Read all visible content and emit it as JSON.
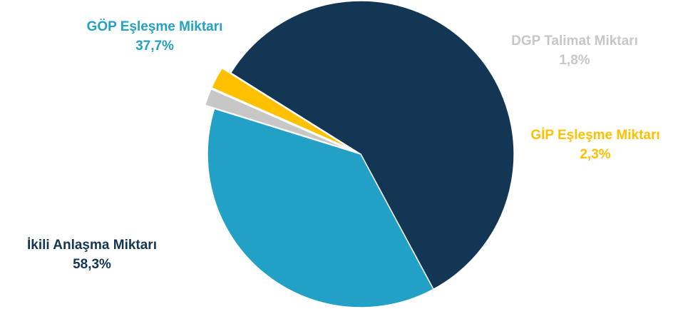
{
  "chart_data": {
    "type": "pie",
    "categories": [
      "İkili Anlaşma Miktarı",
      "GÖP Eşleşme Miktarı",
      "DGP Talimat Miktarı",
      "GİP Eşleşme Miktarı"
    ],
    "values": [
      58.3,
      37.7,
      1.8,
      2.3
    ],
    "value_labels": [
      "58,3%",
      "37,7%",
      "1,8%",
      "2,3%"
    ],
    "colors": [
      "#133655",
      "#22a0c6",
      "#c7c7c7",
      "#ffc000"
    ],
    "exploded": [
      false,
      false,
      true,
      true
    ],
    "legend": "none"
  }
}
